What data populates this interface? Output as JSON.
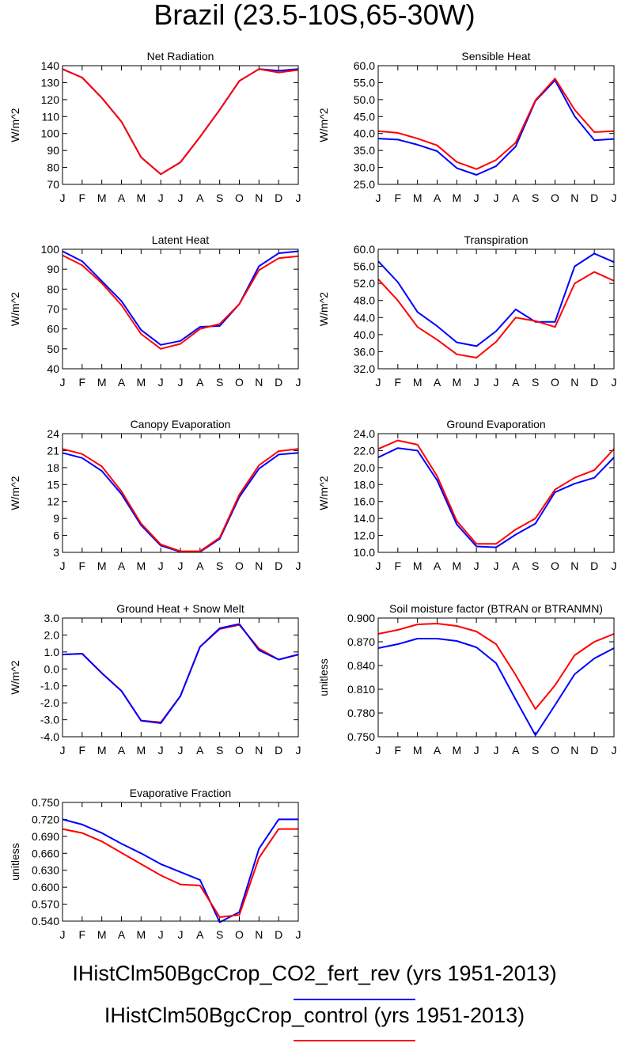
{
  "page": {
    "title": "Brazil (23.5-10S,65-30W)"
  },
  "months": [
    "J",
    "F",
    "M",
    "A",
    "M",
    "J",
    "J",
    "A",
    "S",
    "O",
    "N",
    "D",
    "J"
  ],
  "legend": [
    {
      "label": "IHistClm50BgcCrop_CO2_fert_rev (yrs 1951-2013)",
      "color": "#0000ff"
    },
    {
      "label": "IHistClm50BgcCrop_control (yrs 1951-2013)",
      "color": "#ff0000"
    }
  ],
  "chart_data": [
    {
      "type": "line",
      "title": "Net Radiation",
      "ylabel": "W/m^2",
      "ylim": [
        70,
        140
      ],
      "yticks": [
        "70",
        "80",
        "90",
        "100",
        "110",
        "120",
        "130",
        "140"
      ],
      "categories": [
        "J",
        "F",
        "M",
        "A",
        "M",
        "J",
        "J",
        "A",
        "S",
        "O",
        "N",
        "D",
        "J"
      ],
      "series": [
        {
          "color": "#0000ff",
          "values": [
            138,
            133,
            121,
            107,
            86,
            76,
            83,
            98,
            114,
            131,
            138,
            137,
            138
          ]
        },
        {
          "color": "#ff0000",
          "values": [
            138,
            133,
            121,
            107,
            86,
            76,
            83,
            98,
            114,
            131,
            138,
            136,
            137.5
          ]
        }
      ]
    },
    {
      "type": "line",
      "title": "Sensible Heat",
      "ylabel": "W/m^2",
      "ylim": [
        25,
        60
      ],
      "yticks": [
        "25.0",
        "30.0",
        "35.0",
        "40.0",
        "45.0",
        "50.0",
        "55.0",
        "60.0"
      ],
      "categories": [
        "J",
        "F",
        "M",
        "A",
        "M",
        "J",
        "J",
        "A",
        "S",
        "O",
        "N",
        "D",
        "J"
      ],
      "series": [
        {
          "color": "#0000ff",
          "values": [
            38.5,
            38.2,
            36.7,
            34.8,
            29.8,
            27.8,
            30.4,
            36.2,
            49.6,
            55.7,
            45.1,
            38.0,
            38.4
          ]
        },
        {
          "color": "#ff0000",
          "values": [
            40.7,
            40.2,
            38.5,
            36.5,
            31.6,
            29.5,
            32.2,
            37.3,
            49.8,
            56.2,
            47.0,
            40.4,
            40.7
          ]
        }
      ]
    },
    {
      "type": "line",
      "title": "Latent Heat",
      "ylabel": "W/m^2",
      "ylim": [
        40,
        100
      ],
      "yticks": [
        "40",
        "50",
        "60",
        "70",
        "80",
        "90",
        "100"
      ],
      "categories": [
        "J",
        "F",
        "M",
        "A",
        "M",
        "J",
        "J",
        "A",
        "S",
        "O",
        "N",
        "D",
        "J"
      ],
      "series": [
        {
          "color": "#0000ff",
          "values": [
            99,
            94,
            84,
            74,
            59.5,
            52,
            54,
            61,
            61.5,
            72.5,
            91.5,
            98,
            99
          ]
        },
        {
          "color": "#ff0000",
          "values": [
            97,
            92,
            83,
            72,
            57.5,
            50,
            52.5,
            60,
            62.5,
            72.5,
            89.5,
            95.5,
            96.5
          ]
        }
      ]
    },
    {
      "type": "line",
      "title": "Transpiration",
      "ylabel": "W/m^2",
      "ylim": [
        32,
        60
      ],
      "yticks": [
        "32.0",
        "36.0",
        "40.0",
        "44.0",
        "48.0",
        "52.0",
        "56.0",
        "60.0"
      ],
      "categories": [
        "J",
        "F",
        "M",
        "A",
        "M",
        "J",
        "J",
        "A",
        "S",
        "O",
        "N",
        "D",
        "J"
      ],
      "series": [
        {
          "color": "#0000ff",
          "values": [
            57.2,
            52.3,
            45.3,
            42.0,
            38.2,
            37.3,
            40.8,
            45.9,
            43.0,
            43.0,
            56.0,
            59.0,
            57.0
          ]
        },
        {
          "color": "#ff0000",
          "values": [
            53.0,
            48.0,
            41.8,
            38.8,
            35.4,
            34.6,
            38.3,
            44.0,
            43.2,
            41.8,
            52.0,
            54.7,
            52.6
          ]
        }
      ]
    },
    {
      "type": "line",
      "title": "Canopy Evaporation",
      "ylabel": "W/m^2",
      "ylim": [
        3,
        24
      ],
      "yticks": [
        "3",
        "6",
        "9",
        "12",
        "15",
        "18",
        "21",
        "24"
      ],
      "categories": [
        "J",
        "F",
        "M",
        "A",
        "M",
        "J",
        "J",
        "A",
        "S",
        "O",
        "N",
        "D",
        "J"
      ],
      "series": [
        {
          "color": "#0000ff",
          "values": [
            20.6,
            19.7,
            17.4,
            13.3,
            7.8,
            4.2,
            3.1,
            3.1,
            5.4,
            12.8,
            17.8,
            20.3,
            20.6
          ]
        },
        {
          "color": "#ff0000",
          "values": [
            21.3,
            20.4,
            18.2,
            13.8,
            8.1,
            4.4,
            3.2,
            3.2,
            5.6,
            13.2,
            18.4,
            20.9,
            21.3
          ]
        }
      ]
    },
    {
      "type": "line",
      "title": "Ground Evaporation",
      "ylabel": "W/m^2",
      "ylim": [
        10,
        24
      ],
      "yticks": [
        "10.0",
        "12.0",
        "14.0",
        "16.0",
        "18.0",
        "20.0",
        "22.0",
        "24.0"
      ],
      "categories": [
        "J",
        "F",
        "M",
        "A",
        "M",
        "J",
        "J",
        "A",
        "S",
        "O",
        "N",
        "D",
        "J"
      ],
      "series": [
        {
          "color": "#0000ff",
          "values": [
            21.2,
            22.3,
            22.0,
            18.5,
            13.3,
            10.7,
            10.6,
            12.1,
            13.4,
            17.1,
            18.1,
            18.8,
            21.2
          ]
        },
        {
          "color": "#ff0000",
          "values": [
            22.2,
            23.2,
            22.7,
            19.0,
            13.7,
            11.0,
            11.0,
            12.7,
            14.0,
            17.4,
            18.8,
            19.7,
            22.2
          ]
        }
      ]
    },
    {
      "type": "line",
      "title": "Ground Heat + Snow Melt",
      "ylabel": "W/m^2",
      "ylim": [
        -4,
        3
      ],
      "yticks": [
        "-4.0",
        "-3.0",
        "-2.0",
        "-1.0",
        "0.0",
        "1.0",
        "2.0",
        "3.0"
      ],
      "categories": [
        "J",
        "F",
        "M",
        "A",
        "M",
        "J",
        "J",
        "A",
        "S",
        "O",
        "N",
        "D",
        "J"
      ],
      "series": [
        {
          "color": "#ff0000",
          "values": [
            0.85,
            0.9,
            -0.25,
            -1.3,
            -3.05,
            -3.15,
            -1.6,
            1.3,
            2.35,
            2.6,
            1.2,
            0.55,
            0.85
          ]
        },
        {
          "color": "#0000ff",
          "values": [
            0.85,
            0.9,
            -0.25,
            -1.3,
            -3.05,
            -3.2,
            -1.6,
            1.3,
            2.4,
            2.65,
            1.1,
            0.55,
            0.85
          ]
        }
      ]
    },
    {
      "type": "line",
      "title": "Soil moisture factor (BTRAN or BTRANMN)",
      "ylabel": "unitless",
      "ylim": [
        0.75,
        0.9
      ],
      "yticks": [
        "0.750",
        "0.780",
        "0.810",
        "0.840",
        "0.870",
        "0.900"
      ],
      "categories": [
        "J",
        "F",
        "M",
        "A",
        "M",
        "J",
        "J",
        "A",
        "S",
        "O",
        "N",
        "D",
        "J"
      ],
      "series": [
        {
          "color": "#0000ff",
          "values": [
            0.862,
            0.867,
            0.874,
            0.874,
            0.871,
            0.863,
            0.843,
            0.797,
            0.752,
            0.79,
            0.829,
            0.849,
            0.862
          ]
        },
        {
          "color": "#ff0000",
          "values": [
            0.88,
            0.885,
            0.892,
            0.893,
            0.89,
            0.883,
            0.867,
            0.828,
            0.785,
            0.815,
            0.853,
            0.87,
            0.88
          ]
        }
      ]
    },
    {
      "type": "line",
      "title": "Evaporative Fraction",
      "ylabel": "unitless",
      "ylim": [
        0.54,
        0.75
      ],
      "yticks": [
        "0.540",
        "0.570",
        "0.600",
        "0.630",
        "0.660",
        "0.690",
        "0.720",
        "0.750"
      ],
      "categories": [
        "J",
        "F",
        "M",
        "A",
        "M",
        "J",
        "J",
        "A",
        "S",
        "O",
        "N",
        "D",
        "J"
      ],
      "series": [
        {
          "color": "#0000ff",
          "values": [
            0.72,
            0.711,
            0.696,
            0.677,
            0.66,
            0.641,
            0.627,
            0.613,
            0.538,
            0.556,
            0.668,
            0.72,
            0.72
          ]
        },
        {
          "color": "#ff0000",
          "values": [
            0.703,
            0.696,
            0.681,
            0.661,
            0.641,
            0.621,
            0.605,
            0.603,
            0.547,
            0.551,
            0.652,
            0.703,
            0.703
          ]
        }
      ]
    }
  ]
}
